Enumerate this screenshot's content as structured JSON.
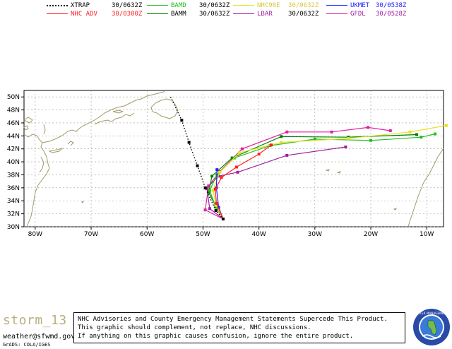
{
  "legend": [
    {
      "name": "XTRAP",
      "time": "30/0632Z",
      "color": "#000000",
      "dotted": true,
      "name_color": "#000000",
      "time_color": "#000000"
    },
    {
      "name": "NHC ADV",
      "time": "30/0300Z",
      "color": "#ff2020",
      "dotted": false,
      "name_color": "#ff2020",
      "time_color": "#ff2020"
    },
    {
      "name": "BAMD",
      "time": "30/0632Z",
      "color": "#20c020",
      "dotted": false,
      "name_color": "#20c020",
      "time_color": "#000000"
    },
    {
      "name": "BAMM",
      "time": "30/0632Z",
      "color": "#008000",
      "dotted": false,
      "name_color": "#000000",
      "time_color": "#000000"
    },
    {
      "name": "NHC98E",
      "time": "30/0632Z",
      "color": "#e8e020",
      "dotted": false,
      "name_color": "#d8c840",
      "time_color": "#d8c840"
    },
    {
      "name": "LBAR",
      "time": "30/0632Z",
      "color": "#a020a0",
      "dotted": false,
      "name_color": "#a020a0",
      "time_color": "#000000"
    },
    {
      "name": "UKMET",
      "time": "30/0538Z",
      "color": "#2020ff",
      "dotted": false,
      "name_color": "#2020ff",
      "time_color": "#2020ff"
    },
    {
      "name": "GFDL",
      "time": "30/0528Z",
      "color": "#e020a0",
      "dotted": false,
      "name_color": "#a020a0",
      "time_color": "#a020a0"
    }
  ],
  "map": {
    "lat_labels": [
      "30N",
      "32N",
      "34N",
      "36N",
      "38N",
      "40N",
      "42N",
      "44N",
      "46N",
      "48N",
      "50N"
    ],
    "lon_labels": [
      "80W",
      "70W",
      "60W",
      "50W",
      "40W",
      "30W",
      "20W",
      "10W"
    ],
    "lat_values": [
      30,
      32,
      34,
      36,
      38,
      40,
      42,
      44,
      46,
      48,
      50
    ],
    "lon_values": [
      -80,
      -70,
      -60,
      -50,
      -40,
      -30,
      -20,
      -10
    ],
    "lon_range": [
      -82,
      -7
    ],
    "lat_range": [
      30,
      51
    ],
    "land_color": "#a09a6a",
    "grid_color": "#9a9a9a"
  },
  "tracks": {
    "XTRAP": [
      [
        -55.8,
        50.0
      ],
      [
        -53.8,
        46.4
      ],
      [
        -52.5,
        43.0
      ],
      [
        -51.0,
        39.4
      ],
      [
        -49.6,
        36.0
      ],
      [
        -47.7,
        32.5
      ],
      [
        -46.4,
        31.2
      ]
    ],
    "NHC ADV": [
      [
        -46.4,
        31.2
      ],
      [
        -47.6,
        33.6
      ],
      [
        -47.8,
        35.8
      ],
      [
        -46.7,
        37.6
      ],
      [
        -44.0,
        39.2
      ],
      [
        -40.0,
        41.2
      ],
      [
        -37.8,
        42.6
      ]
    ],
    "BAMD": [
      [
        -46.4,
        31.2
      ],
      [
        -47.8,
        33.2
      ],
      [
        -48.8,
        35.6
      ],
      [
        -47.5,
        38.0
      ],
      [
        -44.4,
        40.6
      ],
      [
        -38.0,
        42.5
      ],
      [
        -30.0,
        43.5
      ],
      [
        -20.0,
        43.3
      ],
      [
        -11.0,
        43.8
      ],
      [
        -8.5,
        44.3
      ]
    ],
    "BAMM": [
      [
        -46.4,
        31.2
      ],
      [
        -47.6,
        33.0
      ],
      [
        -49.0,
        35.3
      ],
      [
        -48.4,
        37.8
      ],
      [
        -44.8,
        40.6
      ],
      [
        -36.0,
        43.9
      ],
      [
        -24.0,
        43.8
      ],
      [
        -11.8,
        44.2
      ]
    ],
    "NHC98E": [
      [
        -46.4,
        31.2
      ],
      [
        -47.7,
        33.3
      ],
      [
        -48.2,
        35.6
      ],
      [
        -47.0,
        38.4
      ],
      [
        -43.5,
        41.4
      ],
      [
        -36.0,
        43.0
      ],
      [
        -24.0,
        43.6
      ],
      [
        -13.0,
        44.6
      ],
      [
        -6.5,
        45.6
      ]
    ],
    "LBAR": [
      [
        -46.4,
        31.2
      ],
      [
        -48.8,
        32.8
      ],
      [
        -49.3,
        36.0
      ],
      [
        -47.2,
        37.8
      ],
      [
        -43.8,
        38.4
      ],
      [
        -35.0,
        41.0
      ],
      [
        -24.5,
        42.3
      ]
    ],
    "UKMET": [
      [
        -46.4,
        31.2
      ],
      [
        -47.2,
        33.0
      ],
      [
        -47.6,
        36.0
      ],
      [
        -47.5,
        38.8
      ]
    ],
    "GFDL": [
      [
        -46.4,
        31.2
      ],
      [
        -49.6,
        32.6
      ],
      [
        -49.0,
        36.3
      ],
      [
        -47.0,
        38.5
      ],
      [
        -43.0,
        42.0
      ],
      [
        -35.0,
        44.6
      ],
      [
        -27.0,
        44.6
      ],
      [
        -20.5,
        45.3
      ],
      [
        -16.5,
        44.8
      ]
    ]
  },
  "footer": {
    "storm_name": "storm_13",
    "email": "weather@sfwmd.gov",
    "grads": "GrADS: COLA/IGES",
    "notice_lines": [
      "NHC Advisories and County Emergency Management Statements Supercede This Product.",
      "This graphic should complement, not replace, NHC discussions.",
      "If anything on this graphic causes confusion, ignore the entire product."
    ],
    "logo_text": "WATER MANAGEMENT",
    "logo_colors": {
      "outer": "#2a4aa8",
      "ring": "#ffffff",
      "inner": "#3a7ad8"
    }
  }
}
